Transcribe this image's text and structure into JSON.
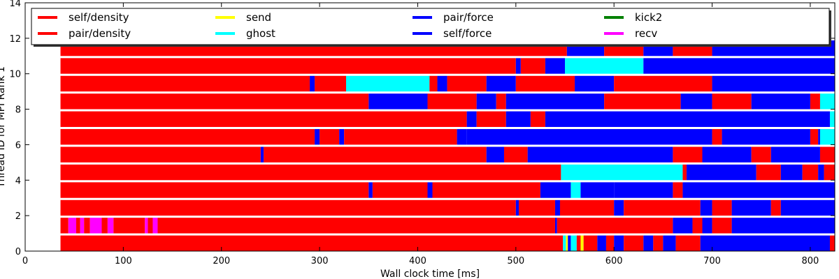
{
  "chart_data": {
    "type": "bar",
    "orientation": "horizontal-gantt",
    "xlabel": "Wall clock time [ms]",
    "ylabel": "Thread ID for MPI Rank 1",
    "xlim": [
      0,
      825
    ],
    "ylim": [
      0,
      14
    ],
    "xticks": [
      0,
      100,
      200,
      300,
      400,
      500,
      600,
      700,
      800
    ],
    "yticks": [
      0,
      2,
      4,
      6,
      8,
      10,
      12,
      14
    ],
    "grid": false,
    "legend_position": "top",
    "legend": [
      {
        "name": "self/density",
        "color": "#ff0000"
      },
      {
        "name": "pair/density",
        "color": "#ff0000"
      },
      {
        "name": "send",
        "color": "#ffff00"
      },
      {
        "name": "ghost",
        "color": "#00ffff"
      },
      {
        "name": "pair/force",
        "color": "#0000ff"
      },
      {
        "name": "self/force",
        "color": "#0000ff"
      },
      {
        "name": "kick2",
        "color": "#008000"
      },
      {
        "name": "recv",
        "color": "#ff00ff"
      }
    ],
    "threads": [
      {
        "thread": 0,
        "segments": [
          [
            36,
            548,
            "#ff0000"
          ],
          [
            548,
            551,
            "#00ffff"
          ],
          [
            551,
            553,
            "#ffff00"
          ],
          [
            553,
            556,
            "#0000ff"
          ],
          [
            556,
            562,
            "#00ffff"
          ],
          [
            562,
            566,
            "#ff0000"
          ],
          [
            566,
            569,
            "#ffff00"
          ],
          [
            569,
            583,
            "#ff0000"
          ],
          [
            583,
            592,
            "#0000ff"
          ],
          [
            592,
            600,
            "#ff0000"
          ],
          [
            600,
            610,
            "#0000ff"
          ],
          [
            610,
            630,
            "#ff0000"
          ],
          [
            630,
            640,
            "#0000ff"
          ],
          [
            640,
            650,
            "#ff0000"
          ],
          [
            650,
            663,
            "#0000ff"
          ],
          [
            663,
            688,
            "#ff0000"
          ],
          [
            688,
            820,
            "#0000ff"
          ],
          [
            820,
            825,
            "#ff0000"
          ]
        ]
      },
      {
        "thread": 1,
        "segments": [
          [
            36,
            44,
            "#ff0000"
          ],
          [
            44,
            52,
            "#ff00ff"
          ],
          [
            52,
            56,
            "#ff0000"
          ],
          [
            56,
            60,
            "#ff00ff"
          ],
          [
            60,
            66,
            "#ff0000"
          ],
          [
            66,
            78,
            "#ff00ff"
          ],
          [
            78,
            84,
            "#ff0000"
          ],
          [
            84,
            90,
            "#ff00ff"
          ],
          [
            90,
            122,
            "#ff0000"
          ],
          [
            122,
            125,
            "#ff00ff"
          ],
          [
            125,
            130,
            "#ff0000"
          ],
          [
            130,
            135,
            "#ff00ff"
          ],
          [
            135,
            540,
            "#ff0000"
          ],
          [
            540,
            542,
            "#0000ff"
          ],
          [
            542,
            660,
            "#ff0000"
          ],
          [
            660,
            680,
            "#0000ff"
          ],
          [
            680,
            690,
            "#ff0000"
          ],
          [
            690,
            700,
            "#0000ff"
          ],
          [
            700,
            720,
            "#ff0000"
          ],
          [
            720,
            825,
            "#0000ff"
          ]
        ]
      },
      {
        "thread": 2,
        "segments": [
          [
            36,
            500,
            "#ff0000"
          ],
          [
            500,
            503,
            "#0000ff"
          ],
          [
            503,
            540,
            "#ff0000"
          ],
          [
            540,
            545,
            "#0000ff"
          ],
          [
            545,
            600,
            "#ff0000"
          ],
          [
            600,
            610,
            "#0000ff"
          ],
          [
            610,
            688,
            "#ff0000"
          ],
          [
            688,
            700,
            "#0000ff"
          ],
          [
            700,
            720,
            "#ff0000"
          ],
          [
            720,
            760,
            "#0000ff"
          ],
          [
            760,
            770,
            "#ff0000"
          ],
          [
            770,
            825,
            "#0000ff"
          ]
        ]
      },
      {
        "thread": 3,
        "segments": [
          [
            36,
            350,
            "#ff0000"
          ],
          [
            350,
            354,
            "#0000ff"
          ],
          [
            354,
            410,
            "#ff0000"
          ],
          [
            410,
            415,
            "#0000ff"
          ],
          [
            415,
            525,
            "#ff0000"
          ],
          [
            525,
            556,
            "#0000ff"
          ],
          [
            556,
            566,
            "#00ffff"
          ],
          [
            566,
            600,
            "#0000ff"
          ],
          [
            600,
            660,
            "#0000ff"
          ],
          [
            660,
            670,
            "#ff0000"
          ],
          [
            670,
            825,
            "#0000ff"
          ]
        ]
      },
      {
        "thread": 4,
        "segments": [
          [
            36,
            546,
            "#ff0000"
          ],
          [
            546,
            670,
            "#00ffff"
          ],
          [
            670,
            674,
            "#ff0000"
          ],
          [
            674,
            745,
            "#0000ff"
          ],
          [
            745,
            770,
            "#ff0000"
          ],
          [
            770,
            792,
            "#0000ff"
          ],
          [
            792,
            808,
            "#ff0000"
          ],
          [
            808,
            814,
            "#0000ff"
          ],
          [
            814,
            825,
            "#ff0000"
          ]
        ]
      },
      {
        "thread": 5,
        "segments": [
          [
            36,
            240,
            "#ff0000"
          ],
          [
            240,
            243,
            "#0000ff"
          ],
          [
            243,
            470,
            "#ff0000"
          ],
          [
            470,
            488,
            "#0000ff"
          ],
          [
            488,
            512,
            "#ff0000"
          ],
          [
            512,
            660,
            "#0000ff"
          ],
          [
            660,
            690,
            "#ff0000"
          ],
          [
            690,
            740,
            "#0000ff"
          ],
          [
            740,
            760,
            "#ff0000"
          ],
          [
            760,
            810,
            "#0000ff"
          ],
          [
            810,
            825,
            "#ff0000"
          ]
        ]
      },
      {
        "thread": 6,
        "segments": [
          [
            36,
            295,
            "#ff0000"
          ],
          [
            295,
            300,
            "#0000ff"
          ],
          [
            300,
            320,
            "#ff0000"
          ],
          [
            320,
            325,
            "#0000ff"
          ],
          [
            325,
            440,
            "#ff0000"
          ],
          [
            440,
            450,
            "#0000ff"
          ],
          [
            450,
            700,
            "#0000ff"
          ],
          [
            700,
            710,
            "#ff0000"
          ],
          [
            710,
            800,
            "#0000ff"
          ],
          [
            800,
            808,
            "#ff0000"
          ],
          [
            808,
            810,
            "#0000ff"
          ],
          [
            810,
            825,
            "#00ffff"
          ]
        ]
      },
      {
        "thread": 7,
        "segments": [
          [
            36,
            450,
            "#ff0000"
          ],
          [
            450,
            460,
            "#0000ff"
          ],
          [
            460,
            490,
            "#ff0000"
          ],
          [
            490,
            515,
            "#0000ff"
          ],
          [
            515,
            530,
            "#ff0000"
          ],
          [
            530,
            820,
            "#0000ff"
          ],
          [
            820,
            825,
            "#00ffff"
          ]
        ]
      },
      {
        "thread": 8,
        "segments": [
          [
            36,
            350,
            "#ff0000"
          ],
          [
            350,
            410,
            "#0000ff"
          ],
          [
            410,
            460,
            "#ff0000"
          ],
          [
            460,
            480,
            "#0000ff"
          ],
          [
            480,
            490,
            "#ff0000"
          ],
          [
            490,
            590,
            "#0000ff"
          ],
          [
            590,
            668,
            "#ff0000"
          ],
          [
            668,
            700,
            "#0000ff"
          ],
          [
            700,
            740,
            "#ff0000"
          ],
          [
            740,
            800,
            "#0000ff"
          ],
          [
            800,
            810,
            "#ff0000"
          ],
          [
            810,
            825,
            "#00ffff"
          ]
        ]
      },
      {
        "thread": 9,
        "segments": [
          [
            36,
            290,
            "#ff0000"
          ],
          [
            290,
            295,
            "#0000ff"
          ],
          [
            295,
            327,
            "#ff0000"
          ],
          [
            327,
            412,
            "#00ffff"
          ],
          [
            412,
            420,
            "#ff0000"
          ],
          [
            420,
            430,
            "#0000ff"
          ],
          [
            430,
            470,
            "#ff0000"
          ],
          [
            470,
            500,
            "#0000ff"
          ],
          [
            500,
            560,
            "#ff0000"
          ],
          [
            560,
            600,
            "#0000ff"
          ],
          [
            600,
            700,
            "#ff0000"
          ],
          [
            700,
            825,
            "#0000ff"
          ]
        ]
      },
      {
        "thread": 10,
        "segments": [
          [
            36,
            500,
            "#ff0000"
          ],
          [
            500,
            505,
            "#0000ff"
          ],
          [
            505,
            530,
            "#ff0000"
          ],
          [
            530,
            550,
            "#0000ff"
          ],
          [
            550,
            630,
            "#00ffff"
          ],
          [
            630,
            825,
            "#0000ff"
          ]
        ]
      },
      {
        "thread": 11,
        "segments": [
          [
            36,
            552,
            "#ff0000"
          ],
          [
            552,
            590,
            "#0000ff"
          ],
          [
            590,
            630,
            "#ff0000"
          ],
          [
            630,
            660,
            "#0000ff"
          ],
          [
            660,
            700,
            "#ff0000"
          ],
          [
            700,
            825,
            "#0000ff"
          ]
        ]
      }
    ]
  }
}
